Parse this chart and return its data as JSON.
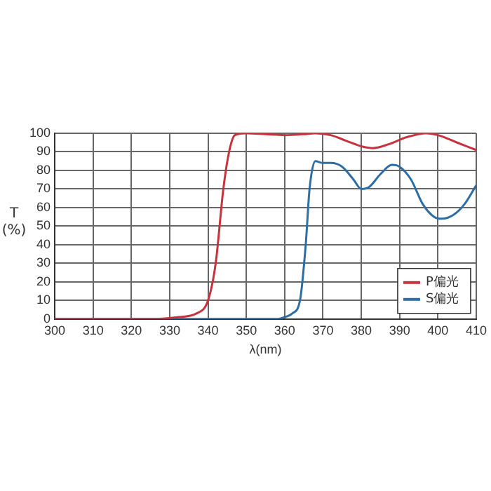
{
  "chart_data": {
    "type": "line",
    "xlabel": "λ(nm)",
    "ylabel": "T\n(%)",
    "xlim": [
      300,
      410
    ],
    "xticks": [
      300,
      310,
      320,
      330,
      340,
      350,
      360,
      370,
      380,
      390,
      400,
      410
    ],
    "ylim": [
      0,
      100
    ],
    "yticks": [
      0,
      10,
      20,
      30,
      40,
      50,
      60,
      70,
      80,
      90,
      100
    ],
    "grid": true,
    "legend": "bottom right",
    "marker": "none",
    "line_style": "solid",
    "series": [
      {
        "name": "P偏光",
        "color": "#c8323c",
        "x": [
          300,
          325,
          332,
          337,
          340,
          342,
          344,
          345.5,
          347,
          350,
          355,
          360,
          365,
          368,
          372,
          376,
          380,
          383,
          387,
          392,
          397,
          400,
          405,
          410
        ],
        "values": [
          0,
          0,
          1,
          3,
          10,
          30,
          70,
          90,
          99,
          100,
          99.5,
          99,
          99.5,
          100,
          99,
          96,
          93,
          92,
          94,
          98,
          100,
          99,
          95,
          91
        ]
      },
      {
        "name": "S偏光",
        "color": "#2e6ea6",
        "x": [
          300,
          358,
          360,
          362,
          364,
          365.5,
          366.5,
          368,
          370,
          372,
          375,
          378,
          380,
          382,
          385,
          388,
          390,
          393,
          396,
          399,
          401,
          404,
          407,
          410
        ],
        "values": [
          0,
          0,
          1,
          3,
          10,
          40,
          70,
          85,
          84,
          84,
          82,
          75,
          70,
          71,
          78,
          83,
          82,
          75,
          62,
          55,
          54,
          56,
          62,
          72
        ]
      }
    ]
  }
}
